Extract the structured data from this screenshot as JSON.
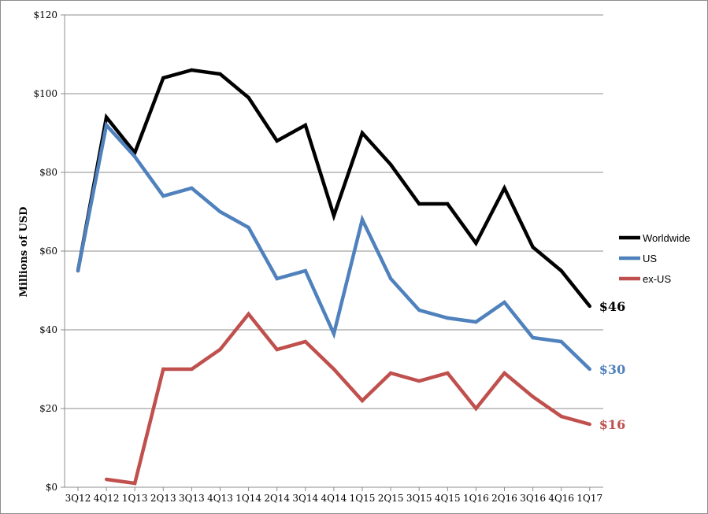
{
  "chart_data": {
    "type": "line",
    "ylabel": "Millions of USD",
    "ylim": [
      0,
      120
    ],
    "yticks": [
      0,
      20,
      40,
      60,
      80,
      100,
      120
    ],
    "ytick_labels": [
      "$0",
      "$20",
      "$40",
      "$60",
      "$80",
      "$100",
      "$120"
    ],
    "grid": "horizontal",
    "legend_position": "right",
    "categories": [
      "3Q12",
      "4Q12",
      "1Q13",
      "2Q13",
      "3Q13",
      "4Q13",
      "1Q14",
      "2Q14",
      "3Q14",
      "4Q14",
      "1Q15",
      "2Q15",
      "3Q15",
      "4Q15",
      "1Q16",
      "2Q16",
      "3Q16",
      "4Q16",
      "1Q17"
    ],
    "series": [
      {
        "name": "Worldwide",
        "color": "#000000",
        "values": [
          55,
          94,
          85,
          104,
          106,
          105,
          99,
          88,
          92,
          69,
          90,
          82,
          72,
          72,
          62,
          76,
          61,
          55,
          46
        ],
        "end_label": "$46"
      },
      {
        "name": "US",
        "color": "#4f81bd",
        "values": [
          55,
          92,
          84,
          74,
          76,
          70,
          66,
          53,
          55,
          39,
          68,
          53,
          45,
          43,
          42,
          47,
          38,
          37,
          30
        ],
        "end_label": "$30"
      },
      {
        "name": "ex-US",
        "color": "#c0504d",
        "values": [
          null,
          2,
          1,
          30,
          30,
          35,
          44,
          35,
          37,
          30,
          22,
          29,
          27,
          29,
          20,
          29,
          23,
          18,
          16
        ],
        "end_label": "$16"
      }
    ]
  }
}
